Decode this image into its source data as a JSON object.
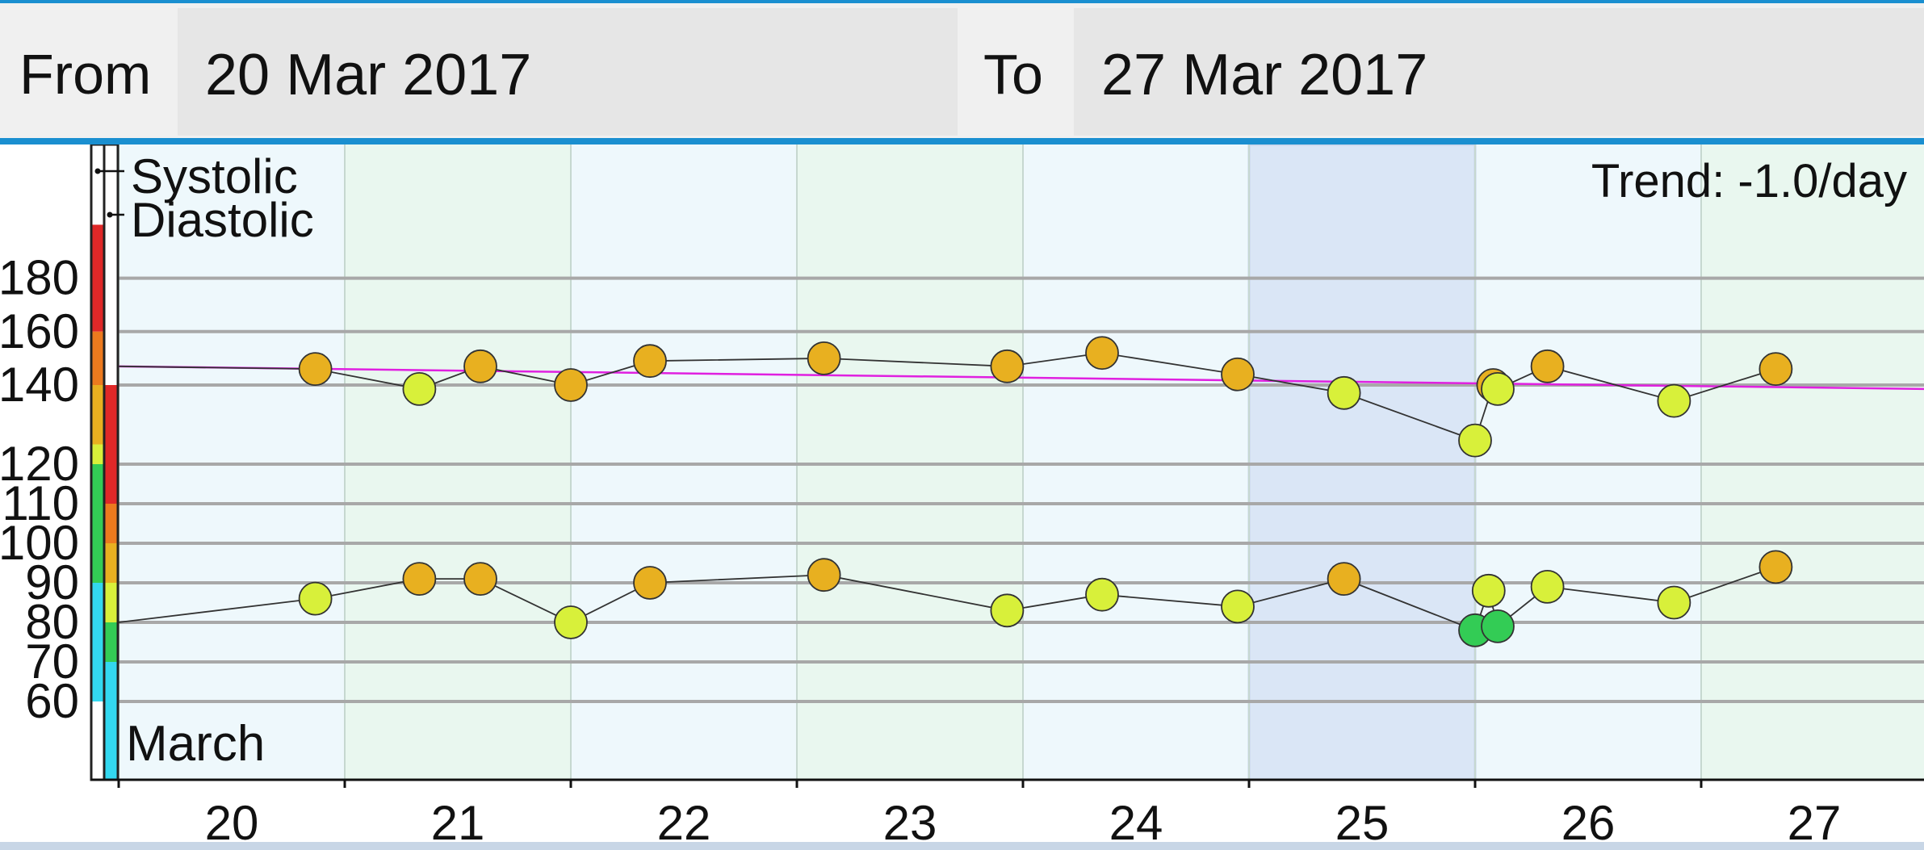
{
  "header": {
    "from_label": "From",
    "from_value": "20 Mar 2017",
    "to_label": "To",
    "to_value": "27 Mar 2017"
  },
  "chart_data": {
    "type": "line",
    "title": "",
    "trend_text": "Trend: -1.0/day",
    "month_label": "March",
    "xlabel": "",
    "ylabel": "",
    "x_ticks": [
      "20",
      "21",
      "22",
      "23",
      "24",
      "25",
      "26",
      "27"
    ],
    "y_ticks": [
      60,
      70,
      80,
      90,
      100,
      110,
      120,
      140,
      160,
      180
    ],
    "xlim": [
      19.5,
      27.5
    ],
    "highlight_range": [
      24.5,
      25.5
    ],
    "legend": [
      "Systolic",
      "Diastolic"
    ],
    "series": [
      {
        "name": "Systolic",
        "points": [
          {
            "x": 19.5,
            "y": 147,
            "color": null
          },
          {
            "x": 20.37,
            "y": 146,
            "color": "#e8b020"
          },
          {
            "x": 20.83,
            "y": 139,
            "color": "#d8f03a"
          },
          {
            "x": 21.1,
            "y": 147,
            "color": "#e8b020"
          },
          {
            "x": 21.5,
            "y": 140,
            "color": "#e8b020"
          },
          {
            "x": 21.85,
            "y": 149,
            "color": "#e8b020"
          },
          {
            "x": 22.62,
            "y": 150,
            "color": "#e8b020"
          },
          {
            "x": 23.43,
            "y": 147,
            "color": "#e8b020"
          },
          {
            "x": 23.85,
            "y": 152,
            "color": "#e8b020"
          },
          {
            "x": 24.45,
            "y": 144,
            "color": "#e8b020"
          },
          {
            "x": 24.92,
            "y": 138,
            "color": "#d8f03a"
          },
          {
            "x": 25.5,
            "y": 126,
            "color": "#d8f03a"
          },
          {
            "x": 25.58,
            "y": 140,
            "color": "#e8b020"
          },
          {
            "x": 25.6,
            "y": 139,
            "color": "#d8f03a"
          },
          {
            "x": 25.82,
            "y": 147,
            "color": "#e8b020"
          },
          {
            "x": 26.38,
            "y": 136,
            "color": "#d8f03a"
          },
          {
            "x": 26.83,
            "y": 146,
            "color": "#e8b020"
          }
        ]
      },
      {
        "name": "Diastolic",
        "points": [
          {
            "x": 19.5,
            "y": 80,
            "color": null
          },
          {
            "x": 20.37,
            "y": 86,
            "color": "#d8f03a"
          },
          {
            "x": 20.83,
            "y": 91,
            "color": "#e8b020"
          },
          {
            "x": 21.1,
            "y": 91,
            "color": "#e8b020"
          },
          {
            "x": 21.5,
            "y": 80,
            "color": "#d8f03a"
          },
          {
            "x": 21.85,
            "y": 90,
            "color": "#e8b020"
          },
          {
            "x": 22.62,
            "y": 92,
            "color": "#e8b020"
          },
          {
            "x": 23.43,
            "y": 83,
            "color": "#d8f03a"
          },
          {
            "x": 23.85,
            "y": 87,
            "color": "#d8f03a"
          },
          {
            "x": 24.45,
            "y": 84,
            "color": "#d8f03a"
          },
          {
            "x": 24.92,
            "y": 91,
            "color": "#e8b020"
          },
          {
            "x": 25.5,
            "y": 78,
            "color": "#33cc55"
          },
          {
            "x": 25.56,
            "y": 88,
            "color": "#d8f03a"
          },
          {
            "x": 25.6,
            "y": 79,
            "color": "#33cc55"
          },
          {
            "x": 25.82,
            "y": 89,
            "color": "#d8f03a"
          },
          {
            "x": 26.38,
            "y": 85,
            "color": "#d8f03a"
          },
          {
            "x": 26.83,
            "y": 94,
            "color": "#e8b020"
          }
        ]
      }
    ],
    "trend_line": {
      "x": [
        19.5,
        27.5
      ],
      "y": [
        147,
        139
      ],
      "color": "#e020e0"
    },
    "day_colors": [
      "#eef8fc",
      "#e9f7ef",
      "#eef8fc",
      "#e9f7ef",
      "#eef8fc",
      "#dae6f6",
      "#eef8fc",
      "#e9f7ef"
    ],
    "systolic_scale_colors": [
      {
        "from": 160,
        "to": 200,
        "color": "#e02828"
      },
      {
        "from": 140,
        "to": 160,
        "color": "#ec7a1e"
      },
      {
        "from": 125,
        "to": 140,
        "color": "#e8b020"
      },
      {
        "from": 120,
        "to": 125,
        "color": "#d8f03a"
      },
      {
        "from": 90,
        "to": 120,
        "color": "#33cc55"
      },
      {
        "from": 60,
        "to": 90,
        "color": "#33d8f0"
      }
    ],
    "diastolic_scale_colors": [
      {
        "from": 110,
        "to": 140,
        "color": "#e02828"
      },
      {
        "from": 100,
        "to": 110,
        "color": "#ec7a1e"
      },
      {
        "from": 90,
        "to": 100,
        "color": "#e8b020"
      },
      {
        "from": 80,
        "to": 90,
        "color": "#d8f03a"
      },
      {
        "from": 70,
        "to": 80,
        "color": "#33cc55"
      },
      {
        "from": 40,
        "to": 70,
        "color": "#33d8f0"
      }
    ]
  }
}
